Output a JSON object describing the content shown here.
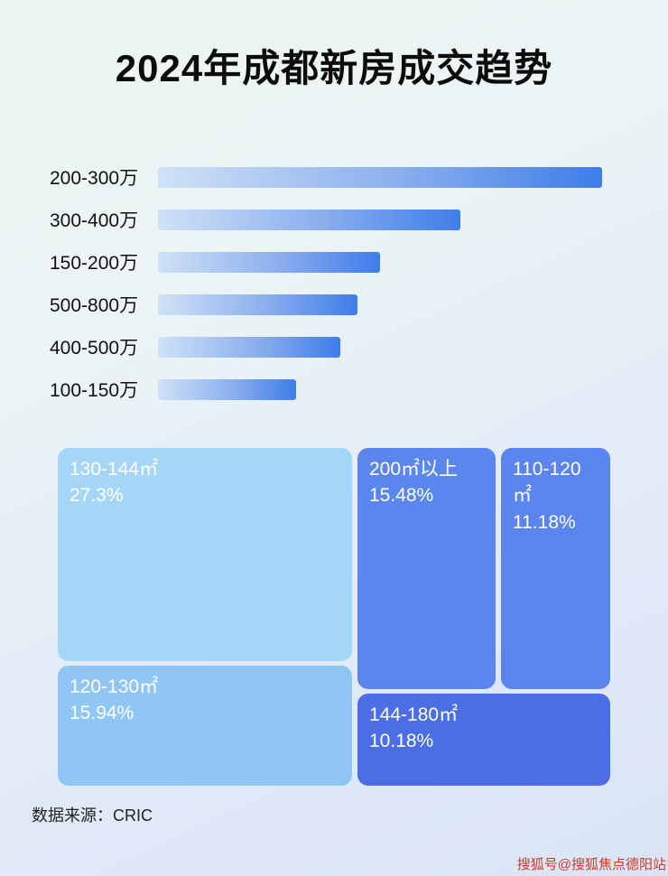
{
  "title": "2024年成都新房成交趋势",
  "chart_data": [
    {
      "type": "bar",
      "orientation": "horizontal",
      "categories": [
        "200-300万",
        "300-400万",
        "150-200万",
        "500-800万",
        "400-500万",
        "100-150万"
      ],
      "values": [
        100,
        68,
        50,
        45,
        41,
        31
      ],
      "value_note": "relative bar length, percent of longest bar (no numeric axis shown)",
      "bar_gradient": [
        "#cfe2f6",
        "#3e7de9"
      ],
      "axis_labels_shown": false,
      "grid": false,
      "legend": false
    },
    {
      "type": "treemap",
      "blocks": [
        {
          "label": "130-144㎡",
          "value": 27.3,
          "value_text": "27.3%",
          "color": "#a4d7f7"
        },
        {
          "label": "200㎡以上",
          "value": 15.48,
          "value_text": "15.48%",
          "color": "#5b86ee"
        },
        {
          "label": "110-120㎡",
          "value": 11.18,
          "value_text": "11.18%",
          "color": "#5a84ee"
        },
        {
          "label": "120-130㎡",
          "value": 15.94,
          "value_text": "15.94%",
          "color": "#8fc6f3"
        },
        {
          "label": "144-180㎡",
          "value": 10.18,
          "value_text": "10.18%",
          "color": "#4b6ee5"
        }
      ],
      "legend": false
    }
  ],
  "footer": {
    "source": "数据来源：CRIC"
  },
  "watermark": "搜狐号@搜狐焦点德阳站"
}
